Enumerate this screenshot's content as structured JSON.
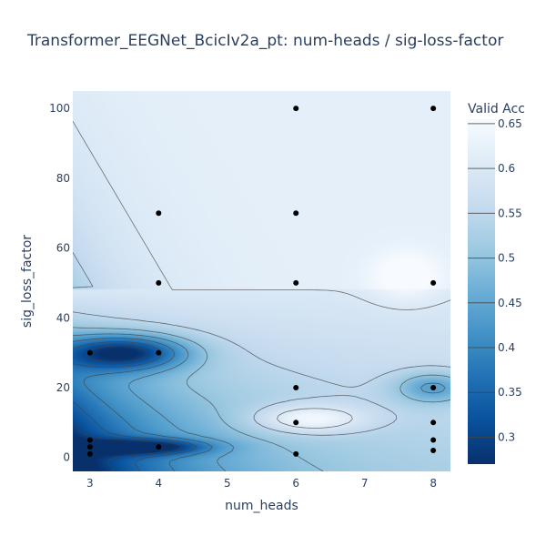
{
  "chart_data": {
    "type": "contour",
    "title": "Transformer_EEGNet_BcicIv2a_pt: num-heads / sig-loss-factor",
    "xlabel": "num_heads",
    "ylabel": "sig_loss_factor",
    "xlim": [
      2.75,
      8.25
    ],
    "ylim": [
      -4,
      105
    ],
    "x_ticks": [
      3,
      4,
      5,
      6,
      7,
      8
    ],
    "y_ticks": [
      0,
      20,
      40,
      60,
      80,
      100
    ],
    "colorbar": {
      "title": "Valid Acc",
      "range": [
        0.27,
        0.655
      ],
      "ticks": [
        0.3,
        0.35,
        0.4,
        0.45,
        0.5,
        0.55,
        0.6,
        0.65
      ],
      "colorscale": [
        "#08306b",
        "#08519c",
        "#2171b5",
        "#4292c6",
        "#6baed6",
        "#9ecae1",
        "#c6dbef",
        "#deebf7",
        "#f7fbff"
      ]
    },
    "points": [
      {
        "x": 3,
        "y": 30
      },
      {
        "x": 3,
        "y": 5
      },
      {
        "x": 3,
        "y": 3
      },
      {
        "x": 3,
        "y": 1
      },
      {
        "x": 4,
        "y": 70
      },
      {
        "x": 4,
        "y": 50
      },
      {
        "x": 4,
        "y": 30
      },
      {
        "x": 4,
        "y": 3
      },
      {
        "x": 6,
        "y": 100
      },
      {
        "x": 6,
        "y": 70
      },
      {
        "x": 6,
        "y": 50
      },
      {
        "x": 6,
        "y": 20
      },
      {
        "x": 6,
        "y": 10
      },
      {
        "x": 6,
        "y": 1
      },
      {
        "x": 8,
        "y": 100
      },
      {
        "x": 8,
        "y": 50
      },
      {
        "x": 8,
        "y": 20
      },
      {
        "x": 8,
        "y": 10
      },
      {
        "x": 8,
        "y": 5
      },
      {
        "x": 8,
        "y": 2
      }
    ],
    "surface_features": [
      {
        "x": 3.5,
        "y": 30,
        "sx": 0.9,
        "sy": 5,
        "amp": -0.25
      },
      {
        "x": 3.8,
        "y": 3,
        "sx": 0.9,
        "sy": 2.2,
        "amp": -0.2
      },
      {
        "x": 8,
        "y": 20,
        "sx": 0.55,
        "sy": 4.5,
        "amp": -0.12
      },
      {
        "x": 6.2,
        "y": 11,
        "sx": 0.8,
        "sy": 4,
        "amp": 0.12
      },
      {
        "x": 7.6,
        "y": 52,
        "sx": 0.5,
        "sy": 7,
        "amp": 0.06
      }
    ]
  }
}
